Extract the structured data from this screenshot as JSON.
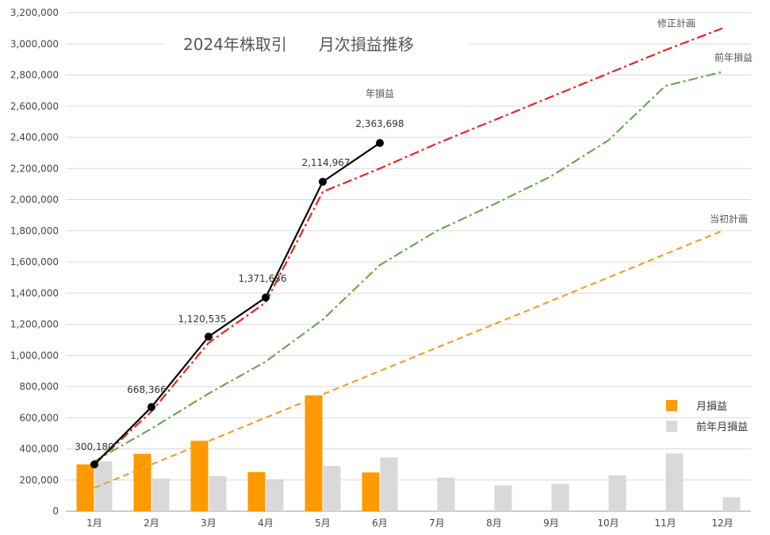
{
  "chart_data": {
    "type": "bar+line",
    "title": "2024年株取引　　月次損益推移",
    "categories": [
      "1月",
      "2月",
      "3月",
      "4月",
      "5月",
      "6月",
      "7月",
      "8月",
      "9月",
      "10月",
      "11月",
      "12月"
    ],
    "ylim": [
      0,
      3200000
    ],
    "yticks": [
      0,
      200000,
      400000,
      600000,
      800000,
      1000000,
      1200000,
      1400000,
      1600000,
      1800000,
      2000000,
      2200000,
      2400000,
      2600000,
      2800000,
      3000000,
      3200000
    ],
    "ytick_labels": [
      "0",
      "200,000",
      "400,000",
      "600,000",
      "800,000",
      "1,000,000",
      "1,200,000",
      "1,400,000",
      "1,600,000",
      "1,800,000",
      "2,000,000",
      "2,200,000",
      "2,400,000",
      "2,600,000",
      "2,800,000",
      "3,000,000",
      "3,200,000"
    ],
    "grid": true,
    "legend_position": "bottom-right",
    "bars": [
      {
        "name": "月損益",
        "color": "#ff9900",
        "values": [
          300180,
          368186,
          452169,
          251101,
          743331,
          248731,
          null,
          null,
          null,
          null,
          null,
          null
        ]
      },
      {
        "name": "前年月損益",
        "color": "#d9d9d9",
        "values": [
          320000,
          210000,
          225000,
          205000,
          290000,
          345000,
          215000,
          165000,
          175000,
          230000,
          370000,
          90000
        ]
      }
    ],
    "lines": [
      {
        "name": "年損益",
        "color": "#000000",
        "style": "solid",
        "markers": true,
        "values": [
          300180,
          668366,
          1120535,
          1371636,
          2114967,
          2363698,
          null,
          null,
          null,
          null,
          null,
          null
        ],
        "labels": [
          "300,180",
          "668,366",
          "1,120,535",
          "1,371,636",
          "2,114,967",
          "2,363,698"
        ]
      },
      {
        "name": "修正計画",
        "color": "#ee2222",
        "style": "dashdot",
        "values": [
          300000,
          640000,
          1080000,
          1340000,
          2050000,
          2200000,
          2360000,
          2510000,
          2660000,
          2810000,
          2960000,
          3100000
        ]
      },
      {
        "name": "前年損益",
        "color": "#6aa84f",
        "style": "dashdot",
        "values": [
          320000,
          530000,
          755000,
          960000,
          1230000,
          1580000,
          1800000,
          1970000,
          2150000,
          2380000,
          2730000,
          2820000
        ]
      },
      {
        "name": "当初計画",
        "color": "#f3a02a",
        "style": "dashed",
        "values": [
          150000,
          300000,
          450000,
          600000,
          750000,
          900000,
          1050000,
          1200000,
          1350000,
          1500000,
          1650000,
          1800000
        ]
      }
    ],
    "series_labels": [
      {
        "text": "年損益",
        "near": "年損益"
      },
      {
        "text": "修正計画",
        "near": "修正計画"
      },
      {
        "text": "前年損益",
        "near": "前年損益"
      },
      {
        "text": "当初計画",
        "near": "当初計画"
      }
    ],
    "legend": [
      {
        "text": "月損益",
        "color": "#ff9900"
      },
      {
        "text": "前年月損益",
        "color": "#d9d9d9"
      }
    ]
  }
}
